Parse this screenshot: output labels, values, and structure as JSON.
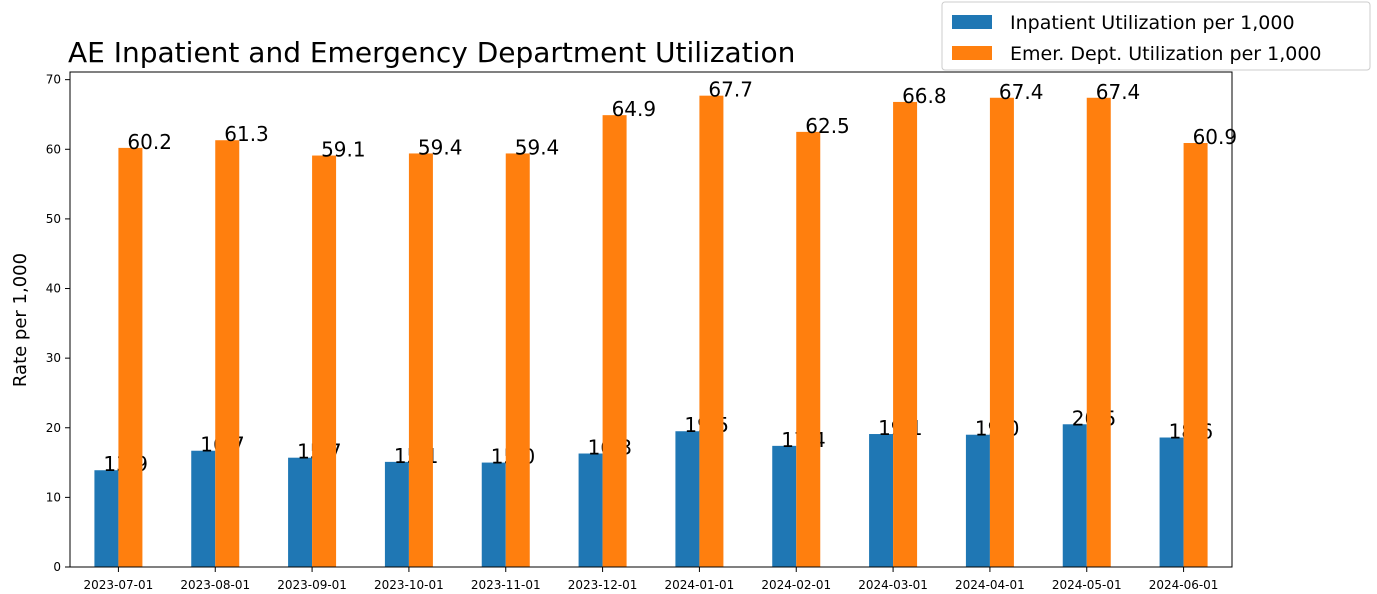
{
  "chart_data": {
    "type": "bar",
    "title": "AE Inpatient and Emergency Department Utilization",
    "y_label": "Rate per 1,000",
    "categories": [
      "2023-07-01",
      "2023-08-01",
      "2023-09-01",
      "2023-10-01",
      "2023-11-01",
      "2023-12-01",
      "2024-01-01",
      "2024-02-01",
      "2024-03-01",
      "2024-04-01",
      "2024-05-01",
      "2024-06-01"
    ],
    "series": [
      {
        "name": "Inpatient Utilization per 1,000",
        "color": "#1f77b4",
        "values": [
          13.9,
          16.7,
          15.7,
          15.1,
          15,
          16.3,
          19.5,
          17.4,
          19.1,
          19,
          20.5,
          18.6
        ],
        "value_labels": [
          "13.9",
          "16.7",
          "15.7",
          "15.1",
          "15.0",
          "16.3",
          "19.5",
          "17.4",
          "19.1",
          "19.0",
          "20.5",
          "18.6"
        ]
      },
      {
        "name": "Emer. Dept. Utilization per 1,000",
        "color": "#ff7f0e",
        "values": [
          60.2,
          61.3,
          59.1,
          59.4,
          59.4,
          64.9,
          67.7,
          62.5,
          66.8,
          67.4,
          67.4,
          60.9
        ],
        "value_labels": [
          "60.2",
          "61.3",
          "59.1",
          "59.4",
          "59.4",
          "64.9",
          "67.7",
          "62.5",
          "66.8",
          "67.4",
          "67.4",
          "60.9"
        ]
      }
    ],
    "ylim": [
      0,
      71.1
    ],
    "yticks": [
      0,
      10,
      20,
      30,
      40,
      50,
      60,
      70
    ],
    "legend": "upper right"
  }
}
